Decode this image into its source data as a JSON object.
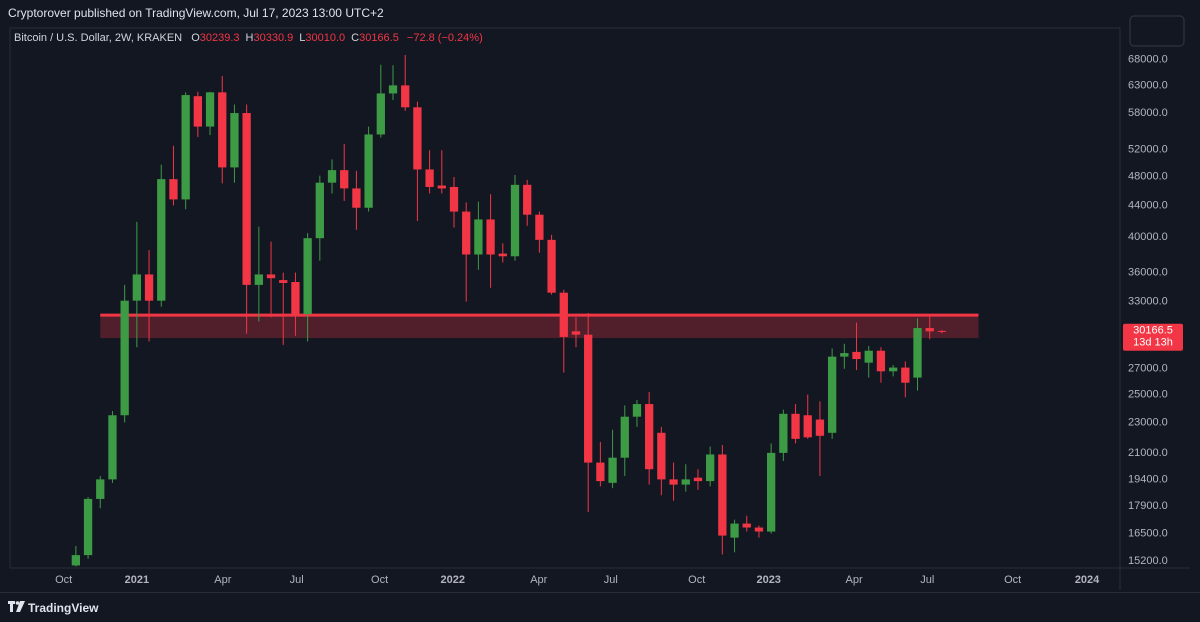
{
  "header": {
    "published": "Cryptorover published on TradingView.com, Jul 17, 2023 13:00 UTC+2"
  },
  "footer": {
    "brand": "TradingView"
  },
  "chart_data": {
    "type": "candlestick",
    "title": "Bitcoin / U.S. Dollar, 2W, KRAKEN",
    "legend_values": [
      {
        "prefix": "O",
        "text": "30239.3"
      },
      {
        "prefix": "H",
        "text": "30330.9"
      },
      {
        "prefix": "L",
        "text": "30010.0"
      },
      {
        "prefix": "C",
        "text": "30166.5"
      }
    ],
    "change": "−72.8 (−0.24%)",
    "countdown": "13d 13h",
    "up_color": "#3d9b45",
    "down_color": "#f23645",
    "log_scale": true,
    "grid": false,
    "open": [
      15000,
      15470,
      18300,
      19400,
      23500,
      33100,
      35800,
      33100,
      47600,
      44800,
      61000,
      55700,
      61700,
      49300,
      58000,
      34700,
      35800,
      35200,
      35000,
      31800,
      39900,
      47100,
      48900,
      46300,
      43700,
      54400,
      61500,
      63000,
      59000,
      49000,
      46700,
      46500,
      43200,
      38000,
      42200,
      38100,
      37800,
      46800,
      42800,
      39700,
      33900,
      30200,
      29900,
      20400,
      19200,
      20700,
      23400,
      24300,
      22300,
      19400,
      19100,
      19500,
      19300,
      20900,
      16300,
      17000,
      16800,
      16600,
      21000,
      23600,
      23500,
      23200,
      22300,
      28000,
      28400,
      27500,
      28500,
      26800,
      27100,
      26300,
      30500,
      30239.3
    ],
    "high": [
      15900,
      18400,
      19600,
      23800,
      34700,
      41900,
      38500,
      49700,
      52600,
      61700,
      61800,
      61800,
      64800,
      59500,
      59500,
      41300,
      39500,
      36000,
      36000,
      40500,
      48100,
      50500,
      52900,
      48800,
      55700,
      67000,
      66900,
      69000,
      60000,
      51900,
      51900,
      47900,
      44400,
      44500,
      45500,
      39300,
      48200,
      47500,
      43200,
      40300,
      34200,
      31500,
      31900,
      21700,
      22500,
      24200,
      24600,
      25200,
      22700,
      20400,
      20300,
      20000,
      21400,
      21500,
      17200,
      17400,
      16900,
      21600,
      23900,
      24300,
      25000,
      24500,
      28700,
      29100,
      31000,
      28900,
      28800,
      27300,
      27600,
      31400,
      31800,
      30330.9
    ],
    "low": [
      14950,
      15300,
      17800,
      19200,
      23000,
      28800,
      29300,
      32500,
      44000,
      43500,
      54000,
      54300,
      47000,
      47100,
      30000,
      31100,
      31500,
      29000,
      29800,
      29300,
      37300,
      45600,
      44600,
      40900,
      43200,
      53900,
      60300,
      58400,
      42000,
      45600,
      45600,
      41200,
      33000,
      36300,
      34400,
      37100,
      37300,
      41400,
      38200,
      33700,
      26700,
      28800,
      17600,
      19000,
      18900,
      19600,
      22700,
      19100,
      18500,
      18200,
      18700,
      18800,
      19000,
      15500,
      15600,
      16600,
      16300,
      16500,
      20500,
      21600,
      21900,
      19600,
      21900,
      27000,
      26900,
      26300,
      25900,
      26400,
      24800,
      25300,
      29500,
      30010.0
    ],
    "close": [
      15470,
      18300,
      19400,
      23500,
      33100,
      35800,
      33100,
      47600,
      44800,
      61200,
      55700,
      61700,
      49300,
      58000,
      34700,
      35800,
      35400,
      34900,
      31800,
      39900,
      47100,
      48900,
      46300,
      43700,
      54400,
      61500,
      63000,
      59000,
      49000,
      46500,
      46300,
      43200,
      38000,
      42200,
      38000,
      37800,
      46800,
      42800,
      39700,
      33900,
      29700,
      29900,
      20400,
      19300,
      20700,
      23400,
      24300,
      20000,
      19400,
      19100,
      19400,
      19300,
      20900,
      16400,
      17000,
      16800,
      16600,
      21000,
      23600,
      21900,
      22000,
      22100,
      28000,
      28300,
      27800,
      28500,
      26800,
      27100,
      25900,
      30500,
      30200,
      30166.5
    ],
    "zone": {
      "low": 29600,
      "high": 31700,
      "start": 2,
      "end": 74,
      "color": "#f23645"
    },
    "xlim": [
      -5.4,
      85.6
    ],
    "xticks": [
      {
        "value": -1,
        "label": "Oct"
      },
      {
        "value": 5,
        "label": "2021"
      },
      {
        "value": 12.05,
        "label": "Apr"
      },
      {
        "value": 18.1,
        "label": "Jul"
      },
      {
        "value": 24.9,
        "label": "Oct"
      },
      {
        "value": 30.9,
        "label": "2022"
      },
      {
        "value": 37.95,
        "label": "Apr"
      },
      {
        "value": 43.85,
        "label": "Jul"
      },
      {
        "value": 50.9,
        "label": "Oct"
      },
      {
        "value": 56.8,
        "label": "2023"
      },
      {
        "value": 63.8,
        "label": "Apr"
      },
      {
        "value": 69.8,
        "label": "Jul"
      },
      {
        "value": 76.8,
        "label": "Oct"
      },
      {
        "value": 82.9,
        "label": "2024"
      }
    ],
    "ylim": [
      14930,
      76600
    ],
    "yticks": [
      {
        "value": 15200,
        "label": "15200.0"
      },
      {
        "value": 16500,
        "label": "16500.0"
      },
      {
        "value": 17900,
        "label": "17900.0"
      },
      {
        "value": 19400,
        "label": "19400.0"
      },
      {
        "value": 21000,
        "label": "21000.0"
      },
      {
        "value": 23000,
        "label": "23000.0"
      },
      {
        "value": 25000,
        "label": "25000.0"
      },
      {
        "value": 27000,
        "label": "27000.0"
      },
      {
        "value": 33000,
        "label": "33000.0"
      },
      {
        "value": 36000,
        "label": "36000.0"
      },
      {
        "value": 40000,
        "label": "40000.0"
      },
      {
        "value": 44000,
        "label": "44000.0"
      },
      {
        "value": 48000,
        "label": "48000.0"
      },
      {
        "value": 52000,
        "label": "52000.0"
      },
      {
        "value": 58000,
        "label": "58000.0"
      },
      {
        "value": 63000,
        "label": "63000.0"
      },
      {
        "value": 68000,
        "label": "68000.0"
      }
    ]
  }
}
